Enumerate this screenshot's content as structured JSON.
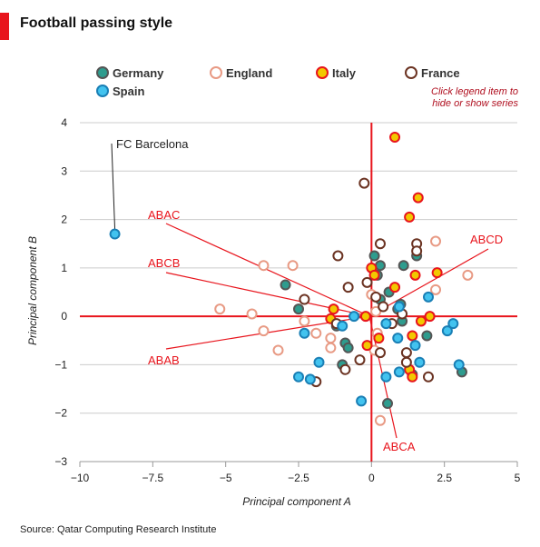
{
  "header": {
    "title": "Football passing style"
  },
  "legend": {
    "note_line1": "Click legend item to",
    "note_line2": "hide or show series"
  },
  "source": "Source: Qatar Computing Research Institute",
  "colors": {
    "axis_red": "#e8141c",
    "grid": "#cccccc"
  },
  "chart_data": {
    "type": "scatter",
    "title": "Football passing style",
    "xlabel": "Principal component A",
    "ylabel": "Principal component B",
    "xlim": [
      -10,
      5
    ],
    "ylim": [
      -3,
      4
    ],
    "x_ticks": [
      -10,
      -7.5,
      -5,
      -2.5,
      0,
      2.5,
      5
    ],
    "x_tick_labels": [
      "−10",
      "−7.5",
      "−5",
      "−2.5",
      "0",
      "2.5",
      "5"
    ],
    "y_ticks": [
      -3,
      -2,
      -1,
      0,
      1,
      2,
      3,
      4
    ],
    "y_tick_labels": [
      "−3",
      "−2",
      "−1",
      "0",
      "1",
      "2",
      "3",
      "4"
    ],
    "grid": true,
    "legend_position": "top",
    "series": [
      {
        "name": "Germany",
        "fill": "#2e9c8e",
        "stroke": "#555555",
        "points": [
          [
            0.1,
            1.25
          ],
          [
            0.2,
            0.85
          ],
          [
            0.3,
            1.05
          ],
          [
            1.1,
            1.05
          ],
          [
            1.55,
            1.25
          ],
          [
            -2.95,
            0.65
          ],
          [
            -2.5,
            0.15
          ],
          [
            0.3,
            0.35
          ],
          [
            0.6,
            0.5
          ],
          [
            1.0,
            0.25
          ],
          [
            1.05,
            -0.1
          ],
          [
            1.9,
            -0.4
          ],
          [
            -0.9,
            -0.55
          ],
          [
            -0.8,
            -0.65
          ],
          [
            -1.0,
            -1.0
          ],
          [
            0.55,
            -1.8
          ],
          [
            1.4,
            -1.2
          ],
          [
            3.1,
            -1.15
          ],
          [
            0.9,
            0.15
          ],
          [
            -1.2,
            -0.2
          ]
        ]
      },
      {
        "name": "England",
        "fill": "#ffffff",
        "stroke": "#e89a84",
        "points": [
          [
            -3.7,
            1.05
          ],
          [
            -2.7,
            1.05
          ],
          [
            -5.2,
            0.15
          ],
          [
            -4.1,
            0.05
          ],
          [
            -3.7,
            -0.3
          ],
          [
            -3.2,
            -0.7
          ],
          [
            -2.3,
            -0.1
          ],
          [
            -1.9,
            -0.35
          ],
          [
            -1.4,
            -0.65
          ],
          [
            0.0,
            0.45
          ],
          [
            0.15,
            0.1
          ],
          [
            0.2,
            -0.35
          ],
          [
            2.2,
            0.55
          ],
          [
            2.2,
            1.55
          ],
          [
            3.3,
            0.85
          ],
          [
            0.3,
            -2.15
          ],
          [
            -1.4,
            -0.45
          ],
          [
            0.1,
            -0.7
          ]
        ]
      },
      {
        "name": "Italy",
        "fill": "#f2c800",
        "stroke": "#e8141c",
        "points": [
          [
            0.8,
            3.7
          ],
          [
            1.6,
            2.45
          ],
          [
            1.3,
            2.05
          ],
          [
            0.0,
            1.0
          ],
          [
            1.5,
            0.85
          ],
          [
            2.25,
            0.9
          ],
          [
            0.8,
            0.6
          ],
          [
            -1.3,
            0.15
          ],
          [
            -1.4,
            -0.05
          ],
          [
            1.7,
            -0.1
          ],
          [
            2.0,
            0.0
          ],
          [
            -0.15,
            -0.6
          ],
          [
            0.25,
            -0.45
          ],
          [
            1.4,
            -0.4
          ],
          [
            1.3,
            -1.1
          ],
          [
            1.4,
            -1.25
          ],
          [
            0.1,
            0.85
          ],
          [
            -0.2,
            0.0
          ]
        ]
      },
      {
        "name": "France",
        "fill": "#ffffff",
        "stroke": "#6b3322",
        "points": [
          [
            -0.25,
            2.75
          ],
          [
            0.3,
            1.5
          ],
          [
            1.55,
            1.5
          ],
          [
            1.55,
            1.35
          ],
          [
            -1.15,
            1.25
          ],
          [
            -0.8,
            0.6
          ],
          [
            -0.15,
            0.7
          ],
          [
            0.15,
            0.4
          ],
          [
            -2.3,
            0.35
          ],
          [
            0.4,
            0.2
          ],
          [
            0.7,
            -0.15
          ],
          [
            1.05,
            0.05
          ],
          [
            -1.2,
            -0.15
          ],
          [
            1.2,
            -0.75
          ],
          [
            1.2,
            -0.95
          ],
          [
            1.95,
            -1.25
          ],
          [
            -0.4,
            -0.9
          ],
          [
            0.3,
            -0.75
          ],
          [
            -1.9,
            -1.35
          ],
          [
            -0.9,
            -1.1
          ]
        ]
      },
      {
        "name": "Spain",
        "fill": "#42c3ef",
        "stroke": "#1a7fb5",
        "points": [
          [
            -8.8,
            1.7
          ],
          [
            1.95,
            0.4
          ],
          [
            0.5,
            -0.15
          ],
          [
            2.8,
            -0.15
          ],
          [
            2.6,
            -0.3
          ],
          [
            1.5,
            -0.6
          ],
          [
            -0.6,
            0.0
          ],
          [
            0.9,
            -0.45
          ],
          [
            -1.0,
            -0.2
          ],
          [
            -2.3,
            -0.35
          ],
          [
            -2.5,
            -1.25
          ],
          [
            -2.1,
            -1.3
          ],
          [
            -1.8,
            -0.95
          ],
          [
            0.95,
            -1.15
          ],
          [
            1.65,
            -0.95
          ],
          [
            0.5,
            -1.25
          ],
          [
            3.0,
            -1.0
          ],
          [
            -0.35,
            -1.75
          ],
          [
            0.95,
            0.2
          ]
        ]
      }
    ],
    "annotations": [
      {
        "text": "FC Barcelona",
        "x": -8.8,
        "y": 1.7
      },
      {
        "text": "ABAC"
      },
      {
        "text": "ABCB"
      },
      {
        "text": "ABAB"
      },
      {
        "text": "ABCD"
      },
      {
        "text": "ABCA"
      }
    ]
  }
}
